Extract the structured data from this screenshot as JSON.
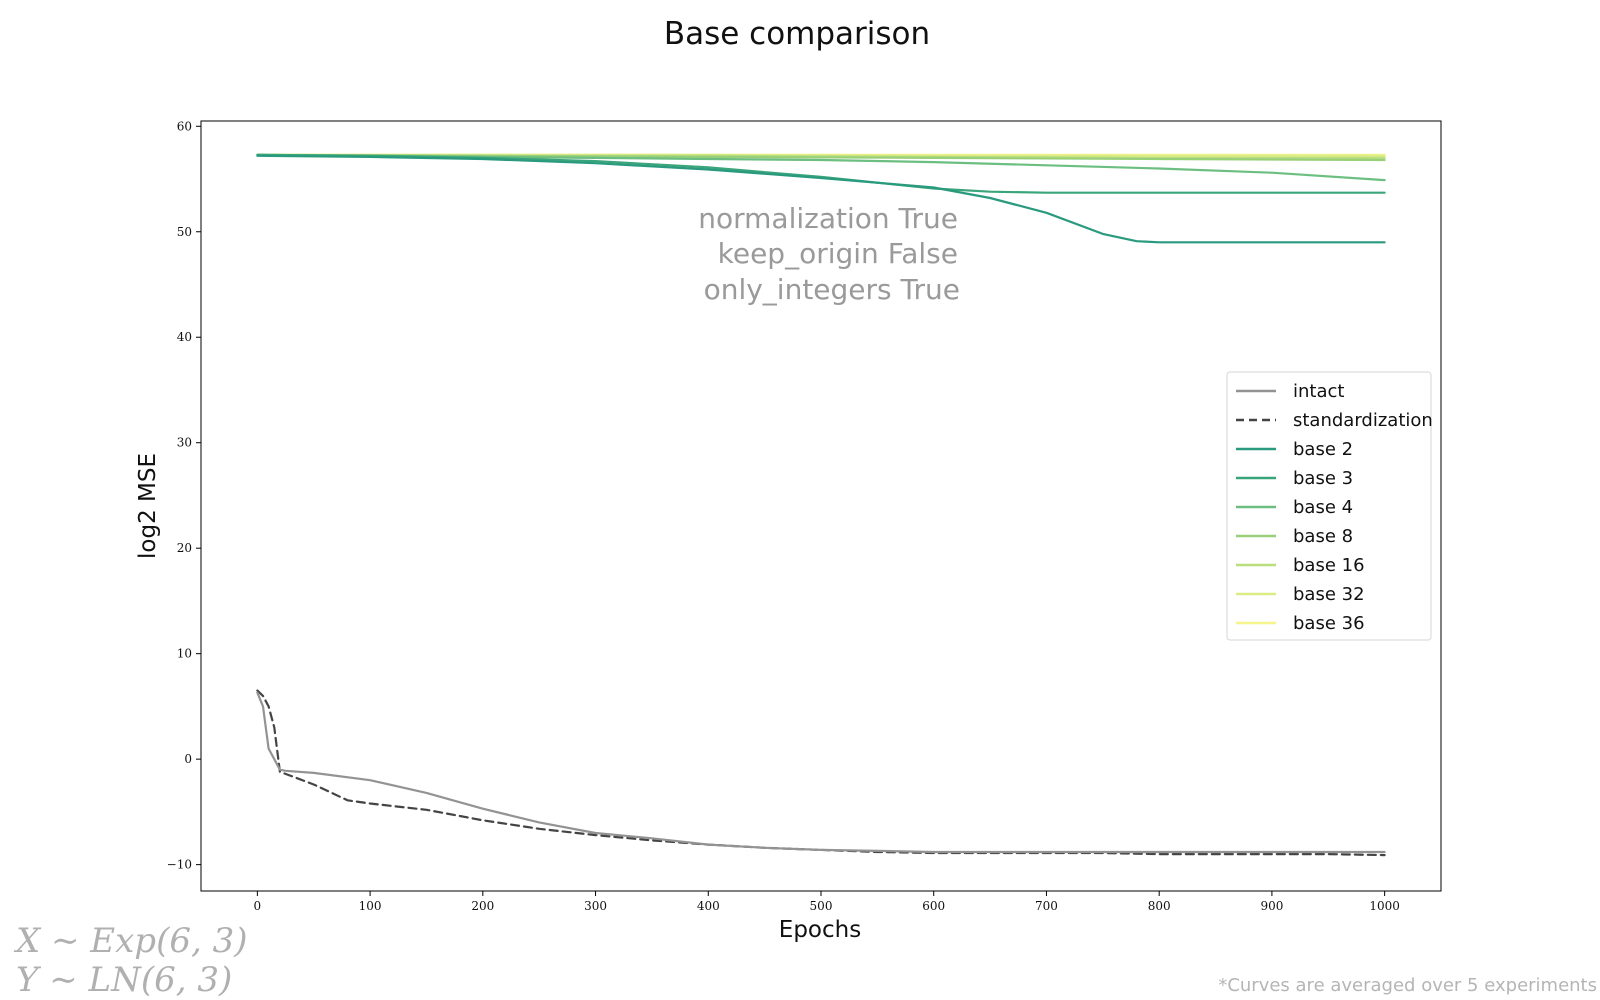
{
  "chart_data": {
    "type": "line",
    "title": "Base comparison",
    "xlabel": "Epochs",
    "ylabel": "log2 MSE",
    "xlim": [
      -50,
      1050
    ],
    "ylim": [
      -12.5,
      60.5
    ],
    "xticks": [
      "0",
      "100",
      "200",
      "300",
      "400",
      "500",
      "600",
      "700",
      "800",
      "900",
      "1000"
    ],
    "yticks": [
      "−10",
      "0",
      "10",
      "20",
      "30",
      "40",
      "50",
      "60"
    ],
    "grid": false,
    "legend_position": "right",
    "annotation": [
      "normalization True",
      "keep_origin False",
      "only_integers True"
    ],
    "series": [
      {
        "name": "intact",
        "color": "#939393",
        "dash": "solid",
        "x": [
          0,
          5,
          10,
          15,
          20,
          25,
          50,
          100,
          150,
          200,
          250,
          300,
          350,
          400,
          450,
          500,
          550,
          600,
          650,
          700,
          750,
          800,
          850,
          900,
          950,
          1000
        ],
        "y": [
          6.3,
          5,
          1,
          0,
          -1,
          -1.1,
          -1.3,
          -2,
          -3.2,
          -4.7,
          -6.0,
          -7.0,
          -7.5,
          -8.1,
          -8.4,
          -8.6,
          -8.7,
          -8.8,
          -8.8,
          -8.8,
          -8.8,
          -8.8,
          -8.8,
          -8.8,
          -8.8,
          -8.8
        ]
      },
      {
        "name": "standardization",
        "color": "#444444",
        "dash": "dashed",
        "x": [
          0,
          5,
          10,
          15,
          20,
          30,
          50,
          80,
          100,
          150,
          200,
          250,
          300,
          350,
          400,
          450,
          500,
          550,
          600,
          650,
          700,
          750,
          800,
          850,
          900,
          950,
          1000
        ],
        "y": [
          6.5,
          6,
          5,
          3,
          -1.2,
          -1.6,
          -2.4,
          -3.9,
          -4.2,
          -4.8,
          -5.8,
          -6.6,
          -7.2,
          -7.7,
          -8.1,
          -8.4,
          -8.6,
          -8.8,
          -8.9,
          -8.9,
          -8.9,
          -8.9,
          -9.0,
          -9.0,
          -9.0,
          -9.0,
          -9.1
        ]
      },
      {
        "name": "base 2",
        "color": "#2a9a7e",
        "dash": "solid",
        "x": [
          0,
          100,
          200,
          300,
          400,
          500,
          600,
          650,
          700,
          750,
          780,
          800,
          850,
          900,
          950,
          1000
        ],
        "y": [
          57.2,
          57.1,
          56.9,
          56.5,
          55.9,
          55.1,
          54.2,
          53.2,
          51.8,
          49.8,
          49.1,
          49.0,
          49.0,
          49.0,
          49.0,
          49.0
        ]
      },
      {
        "name": "base 3",
        "color": "#3aa57a",
        "dash": "solid",
        "x": [
          0,
          100,
          200,
          300,
          400,
          500,
          600,
          650,
          700,
          800,
          900,
          1000
        ],
        "y": [
          57.3,
          57.2,
          57.0,
          56.7,
          56.1,
          55.2,
          54.1,
          53.8,
          53.7,
          53.7,
          53.7,
          53.7
        ]
      },
      {
        "name": "base 4",
        "color": "#6cbf80",
        "dash": "solid",
        "x": [
          0,
          100,
          200,
          300,
          400,
          500,
          600,
          700,
          800,
          900,
          1000
        ],
        "y": [
          57.3,
          57.2,
          57.1,
          57.0,
          56.9,
          56.8,
          56.6,
          56.3,
          56.0,
          55.6,
          54.9
        ]
      },
      {
        "name": "base 8",
        "color": "#98d07a",
        "dash": "solid",
        "x": [
          0,
          200,
          400,
          600,
          800,
          1000
        ],
        "y": [
          57.3,
          57.2,
          57.1,
          57.0,
          56.9,
          56.8
        ]
      },
      {
        "name": "base 16",
        "color": "#bade7e",
        "dash": "solid",
        "x": [
          0,
          200,
          400,
          600,
          800,
          1000
        ],
        "y": [
          57.3,
          57.2,
          57.2,
          57.1,
          57.0,
          57.0
        ]
      },
      {
        "name": "base 32",
        "color": "#dcec84",
        "dash": "solid",
        "x": [
          0,
          200,
          400,
          600,
          800,
          1000
        ],
        "y": [
          57.3,
          57.3,
          57.3,
          57.2,
          57.2,
          57.2
        ]
      },
      {
        "name": "base 36",
        "color": "#f5f58c",
        "dash": "solid",
        "x": [
          0,
          200,
          400,
          600,
          800,
          1000
        ],
        "y": [
          57.3,
          57.3,
          57.3,
          57.3,
          57.3,
          57.3
        ]
      }
    ]
  },
  "formula": {
    "line1": "X ∼ Exp(6, 3)",
    "line2": "Y ∼ LN(6, 3)"
  },
  "footnote": "*Curves are averaged over 5 experiments"
}
